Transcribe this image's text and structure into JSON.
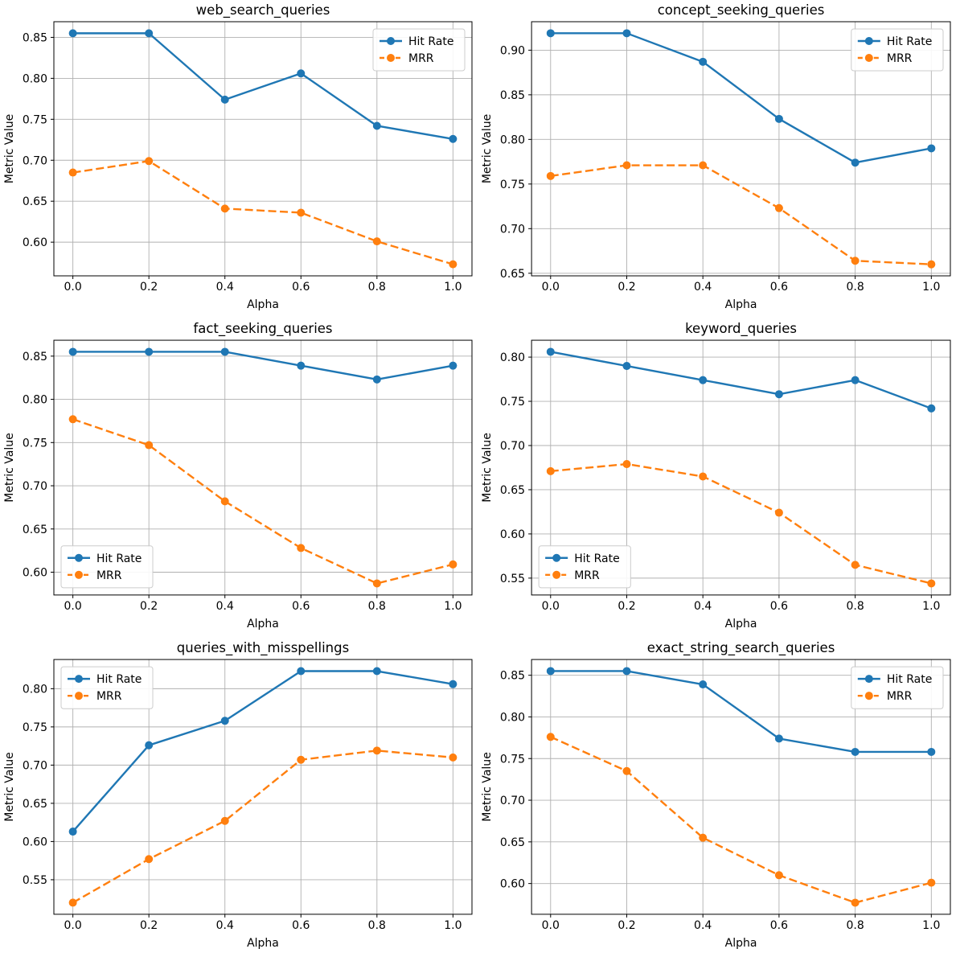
{
  "figure": {
    "background": "#ffffff",
    "grid_color": "#b0b0b0",
    "spine_color": "#000000",
    "text_color": "#000000",
    "hit_rate_color": "#1f77b4",
    "mrr_color": "#ff7f0e",
    "legend_entries": [
      "Hit Rate",
      "MRR"
    ]
  },
  "chart_data": [
    {
      "type": "line",
      "title": "web_search_queries",
      "xlabel": "Alpha",
      "ylabel": "Metric Value",
      "x": [
        0.0,
        0.2,
        0.4,
        0.6,
        0.8,
        1.0
      ],
      "xlim": [
        -0.05,
        1.05
      ],
      "ylim": [
        0.5589,
        0.8691
      ],
      "xticks": [
        0.0,
        0.2,
        0.4,
        0.6,
        0.8,
        1.0
      ],
      "yticks": [
        0.6,
        0.65,
        0.7,
        0.75,
        0.8,
        0.85
      ],
      "grid": true,
      "legend_position": "upper-right",
      "series": [
        {
          "name": "Hit Rate",
          "color": "#1f77b4",
          "line": "solid",
          "marker": "circle",
          "values": [
            0.855,
            0.855,
            0.774,
            0.806,
            0.742,
            0.726
          ]
        },
        {
          "name": "MRR",
          "color": "#ff7f0e",
          "line": "dashed",
          "marker": "circle",
          "values": [
            0.685,
            0.699,
            0.641,
            0.636,
            0.601,
            0.573
          ]
        }
      ]
    },
    {
      "type": "line",
      "title": "concept_seeking_queries",
      "xlabel": "Alpha",
      "ylabel": "Metric Value",
      "x": [
        0.0,
        0.2,
        0.4,
        0.6,
        0.8,
        1.0
      ],
      "xlim": [
        -0.05,
        1.05
      ],
      "ylim": [
        0.6471,
        0.9319
      ],
      "xticks": [
        0.0,
        0.2,
        0.4,
        0.6,
        0.8,
        1.0
      ],
      "yticks": [
        0.65,
        0.7,
        0.75,
        0.8,
        0.85,
        0.9
      ],
      "grid": true,
      "legend_position": "upper-right",
      "series": [
        {
          "name": "Hit Rate",
          "color": "#1f77b4",
          "line": "solid",
          "marker": "circle",
          "values": [
            0.919,
            0.919,
            0.887,
            0.823,
            0.774,
            0.79
          ]
        },
        {
          "name": "MRR",
          "color": "#ff7f0e",
          "line": "dashed",
          "marker": "circle",
          "values": [
            0.759,
            0.771,
            0.771,
            0.723,
            0.664,
            0.66
          ]
        }
      ]
    },
    {
      "type": "line",
      "title": "fact_seeking_queries",
      "xlabel": "Alpha",
      "ylabel": "Metric Value",
      "x": [
        0.0,
        0.2,
        0.4,
        0.6,
        0.8,
        1.0
      ],
      "xlim": [
        -0.05,
        1.05
      ],
      "ylim": [
        0.5736,
        0.8684
      ],
      "xticks": [
        0.0,
        0.2,
        0.4,
        0.6,
        0.8,
        1.0
      ],
      "yticks": [
        0.6,
        0.65,
        0.7,
        0.75,
        0.8,
        0.85
      ],
      "grid": true,
      "legend_position": "lower-left",
      "series": [
        {
          "name": "Hit Rate",
          "color": "#1f77b4",
          "line": "solid",
          "marker": "circle",
          "values": [
            0.855,
            0.855,
            0.855,
            0.839,
            0.823,
            0.839
          ]
        },
        {
          "name": "MRR",
          "color": "#ff7f0e",
          "line": "dashed",
          "marker": "circle",
          "values": [
            0.777,
            0.747,
            0.682,
            0.628,
            0.587,
            0.609
          ]
        }
      ]
    },
    {
      "type": "line",
      "title": "keyword_queries",
      "xlabel": "Alpha",
      "ylabel": "Metric Value",
      "x": [
        0.0,
        0.2,
        0.4,
        0.6,
        0.8,
        1.0
      ],
      "xlim": [
        -0.05,
        1.05
      ],
      "ylim": [
        0.5309,
        0.8191
      ],
      "xticks": [
        0.0,
        0.2,
        0.4,
        0.6,
        0.8,
        1.0
      ],
      "yticks": [
        0.55,
        0.6,
        0.65,
        0.7,
        0.75,
        0.8
      ],
      "grid": true,
      "legend_position": "lower-left",
      "series": [
        {
          "name": "Hit Rate",
          "color": "#1f77b4",
          "line": "solid",
          "marker": "circle",
          "values": [
            0.806,
            0.79,
            0.774,
            0.758,
            0.774,
            0.742
          ]
        },
        {
          "name": "MRR",
          "color": "#ff7f0e",
          "line": "dashed",
          "marker": "circle",
          "values": [
            0.671,
            0.679,
            0.665,
            0.624,
            0.565,
            0.544
          ]
        }
      ]
    },
    {
      "type": "line",
      "title": "queries_with_misspellings",
      "xlabel": "Alpha",
      "ylabel": "Metric Value",
      "x": [
        0.0,
        0.2,
        0.4,
        0.6,
        0.8,
        1.0
      ],
      "xlim": [
        -0.05,
        1.05
      ],
      "ylim": [
        0.5048,
        0.8382
      ],
      "xticks": [
        0.0,
        0.2,
        0.4,
        0.6,
        0.8,
        1.0
      ],
      "yticks": [
        0.55,
        0.6,
        0.65,
        0.7,
        0.75,
        0.8
      ],
      "grid": true,
      "legend_position": "upper-left",
      "series": [
        {
          "name": "Hit Rate",
          "color": "#1f77b4",
          "line": "solid",
          "marker": "circle",
          "values": [
            0.613,
            0.726,
            0.758,
            0.823,
            0.823,
            0.806
          ]
        },
        {
          "name": "MRR",
          "color": "#ff7f0e",
          "line": "dashed",
          "marker": "circle",
          "values": [
            0.52,
            0.577,
            0.627,
            0.707,
            0.719,
            0.71
          ]
        }
      ]
    },
    {
      "type": "line",
      "title": "exact_string_search_queries",
      "xlabel": "Alpha",
      "ylabel": "Metric Value",
      "x": [
        0.0,
        0.2,
        0.4,
        0.6,
        0.8,
        1.0
      ],
      "xlim": [
        -0.05,
        1.05
      ],
      "ylim": [
        0.5631,
        0.8689
      ],
      "xticks": [
        0.0,
        0.2,
        0.4,
        0.6,
        0.8,
        1.0
      ],
      "yticks": [
        0.6,
        0.65,
        0.7,
        0.75,
        0.8,
        0.85
      ],
      "grid": true,
      "legend_position": "upper-right",
      "series": [
        {
          "name": "Hit Rate",
          "color": "#1f77b4",
          "line": "solid",
          "marker": "circle",
          "values": [
            0.855,
            0.855,
            0.839,
            0.774,
            0.758,
            0.758
          ]
        },
        {
          "name": "MRR",
          "color": "#ff7f0e",
          "line": "dashed",
          "marker": "circle",
          "values": [
            0.776,
            0.735,
            0.655,
            0.61,
            0.577,
            0.601
          ]
        }
      ]
    }
  ]
}
